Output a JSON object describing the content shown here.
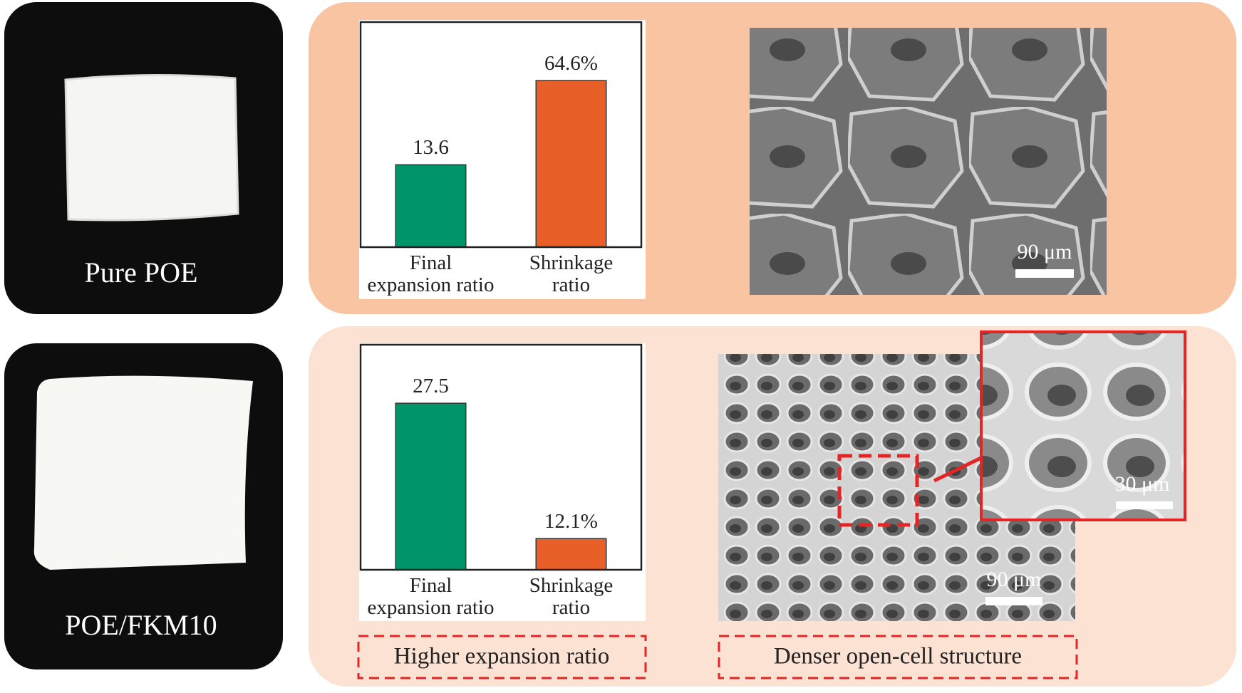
{
  "panels": [
    {
      "sample_label": "Pure POE",
      "scale_bar": "90 μm"
    },
    {
      "sample_label": "POE/FKM10",
      "scale_bar": "90 μm",
      "inset_scale_bar": "30 μm",
      "annotations": [
        "Higher expansion ratio",
        "Denser open-cell structure"
      ]
    }
  ],
  "chart_data": [
    {
      "type": "bar",
      "categories": [
        "Final expansion ratio",
        "Shrinkage ratio"
      ],
      "values": [
        13.6,
        64.6
      ],
      "value_labels": [
        "13.6",
        "64.6%"
      ],
      "colors": [
        "#00946a",
        "#e85f27"
      ]
    },
    {
      "type": "bar",
      "categories": [
        "Final expansion ratio",
        "Shrinkage ratio"
      ],
      "values": [
        27.5,
        12.1
      ],
      "value_labels": [
        "27.5",
        "12.1%"
      ],
      "colors": [
        "#00946a",
        "#e85f27"
      ]
    }
  ]
}
